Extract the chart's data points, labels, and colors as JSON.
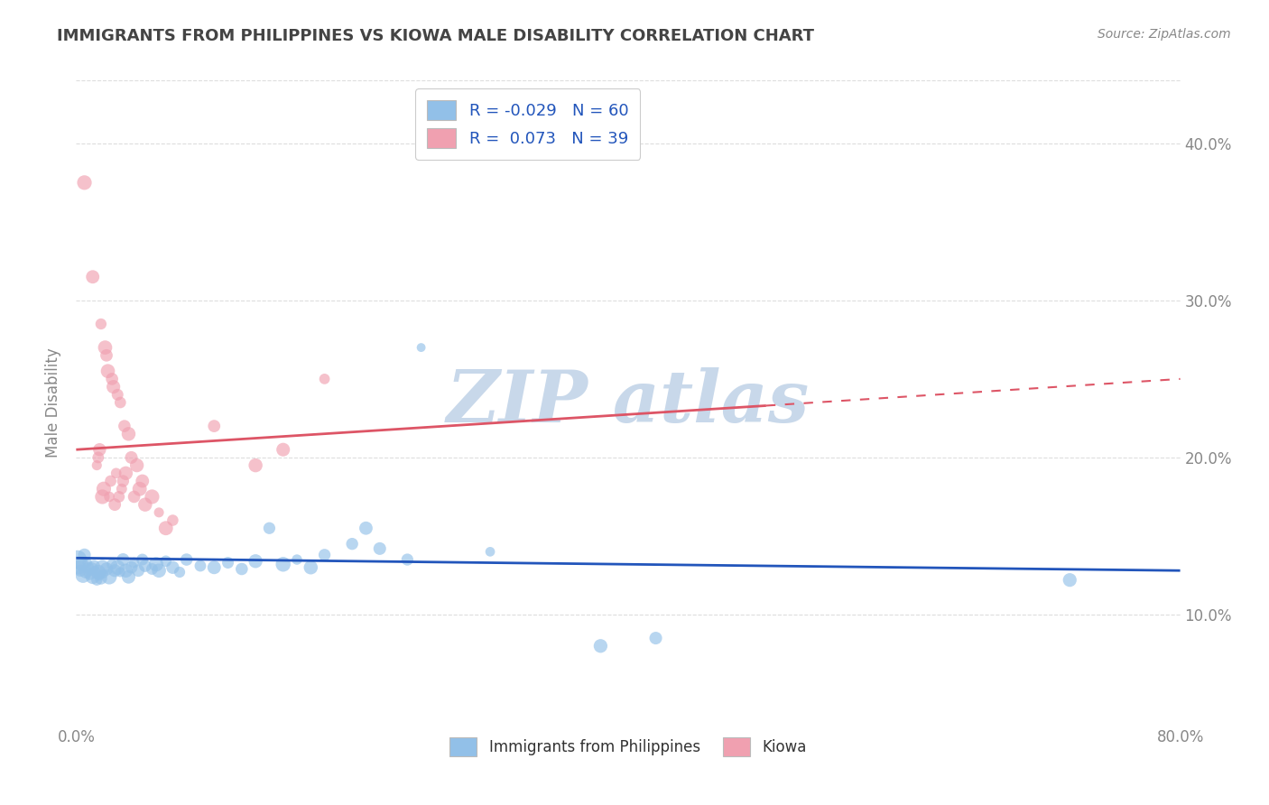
{
  "title": "IMMIGRANTS FROM PHILIPPINES VS KIOWA MALE DISABILITY CORRELATION CHART",
  "source": "Source: ZipAtlas.com",
  "ylabel": "Male Disability",
  "xlim": [
    0.0,
    0.8
  ],
  "ylim": [
    0.03,
    0.44
  ],
  "yticks": [
    0.1,
    0.2,
    0.3,
    0.4
  ],
  "ytick_labels": [
    "10.0%",
    "20.0%",
    "30.0%",
    "40.0%"
  ],
  "xticks": [
    0.0,
    0.8
  ],
  "xtick_labels": [
    "0.0%",
    "80.0%"
  ],
  "blue_scatter": [
    [
      0.001,
      0.135
    ],
    [
      0.002,
      0.13
    ],
    [
      0.003,
      0.128
    ],
    [
      0.004,
      0.132
    ],
    [
      0.005,
      0.125
    ],
    [
      0.006,
      0.138
    ],
    [
      0.007,
      0.127
    ],
    [
      0.008,
      0.133
    ],
    [
      0.009,
      0.13
    ],
    [
      0.01,
      0.126
    ],
    [
      0.011,
      0.129
    ],
    [
      0.012,
      0.124
    ],
    [
      0.013,
      0.131
    ],
    [
      0.014,
      0.128
    ],
    [
      0.015,
      0.122
    ],
    [
      0.016,
      0.127
    ],
    [
      0.017,
      0.125
    ],
    [
      0.018,
      0.123
    ],
    [
      0.019,
      0.13
    ],
    [
      0.02,
      0.126
    ],
    [
      0.022,
      0.129
    ],
    [
      0.024,
      0.124
    ],
    [
      0.026,
      0.132
    ],
    [
      0.028,
      0.128
    ],
    [
      0.03,
      0.13
    ],
    [
      0.032,
      0.127
    ],
    [
      0.034,
      0.135
    ],
    [
      0.036,
      0.128
    ],
    [
      0.038,
      0.124
    ],
    [
      0.04,
      0.13
    ],
    [
      0.042,
      0.133
    ],
    [
      0.045,
      0.128
    ],
    [
      0.048,
      0.135
    ],
    [
      0.05,
      0.131
    ],
    [
      0.055,
      0.129
    ],
    [
      0.058,
      0.132
    ],
    [
      0.06,
      0.128
    ],
    [
      0.065,
      0.134
    ],
    [
      0.07,
      0.13
    ],
    [
      0.075,
      0.127
    ],
    [
      0.08,
      0.135
    ],
    [
      0.09,
      0.131
    ],
    [
      0.1,
      0.13
    ],
    [
      0.11,
      0.133
    ],
    [
      0.12,
      0.129
    ],
    [
      0.13,
      0.134
    ],
    [
      0.14,
      0.155
    ],
    [
      0.15,
      0.132
    ],
    [
      0.16,
      0.135
    ],
    [
      0.17,
      0.13
    ],
    [
      0.18,
      0.138
    ],
    [
      0.2,
      0.145
    ],
    [
      0.21,
      0.155
    ],
    [
      0.22,
      0.142
    ],
    [
      0.24,
      0.135
    ],
    [
      0.25,
      0.27
    ],
    [
      0.3,
      0.14
    ],
    [
      0.38,
      0.08
    ],
    [
      0.42,
      0.085
    ],
    [
      0.72,
      0.122
    ]
  ],
  "pink_scatter": [
    [
      0.006,
      0.375
    ],
    [
      0.012,
      0.315
    ],
    [
      0.015,
      0.195
    ],
    [
      0.016,
      0.2
    ],
    [
      0.017,
      0.205
    ],
    [
      0.018,
      0.285
    ],
    [
      0.019,
      0.175
    ],
    [
      0.02,
      0.18
    ],
    [
      0.021,
      0.27
    ],
    [
      0.022,
      0.265
    ],
    [
      0.023,
      0.255
    ],
    [
      0.024,
      0.175
    ],
    [
      0.025,
      0.185
    ],
    [
      0.026,
      0.25
    ],
    [
      0.027,
      0.245
    ],
    [
      0.028,
      0.17
    ],
    [
      0.029,
      0.19
    ],
    [
      0.03,
      0.24
    ],
    [
      0.031,
      0.175
    ],
    [
      0.032,
      0.235
    ],
    [
      0.033,
      0.18
    ],
    [
      0.034,
      0.185
    ],
    [
      0.035,
      0.22
    ],
    [
      0.036,
      0.19
    ],
    [
      0.038,
      0.215
    ],
    [
      0.04,
      0.2
    ],
    [
      0.042,
      0.175
    ],
    [
      0.044,
      0.195
    ],
    [
      0.046,
      0.18
    ],
    [
      0.048,
      0.185
    ],
    [
      0.05,
      0.17
    ],
    [
      0.055,
      0.175
    ],
    [
      0.06,
      0.165
    ],
    [
      0.065,
      0.155
    ],
    [
      0.07,
      0.16
    ],
    [
      0.1,
      0.22
    ],
    [
      0.13,
      0.195
    ],
    [
      0.15,
      0.205
    ],
    [
      0.18,
      0.25
    ]
  ],
  "blue_line_x": [
    0.0,
    0.8
  ],
  "blue_line_y": [
    0.136,
    0.128
  ],
  "pink_line_x": [
    0.0,
    0.5
  ],
  "pink_line_y": [
    0.205,
    0.233
  ],
  "legend_r_blue": "R = -0.029",
  "legend_n_blue": "N = 60",
  "legend_r_pink": "R =  0.073",
  "legend_n_pink": "N = 39",
  "legend_label_blue": "Immigrants from Philippines",
  "legend_label_pink": "Kiowa",
  "blue_color": "#92C0E8",
  "blue_line_color": "#2255BB",
  "pink_color": "#F0A0B0",
  "pink_line_color": "#DD5566",
  "title_color": "#444444",
  "source_color": "#888888",
  "axis_label_color": "#888888",
  "tick_color": "#888888",
  "legend_text_color": "#2255BB",
  "watermark_color": "#C8D8EA",
  "background_color": "#FFFFFF",
  "grid_color": "#DDDDDD"
}
